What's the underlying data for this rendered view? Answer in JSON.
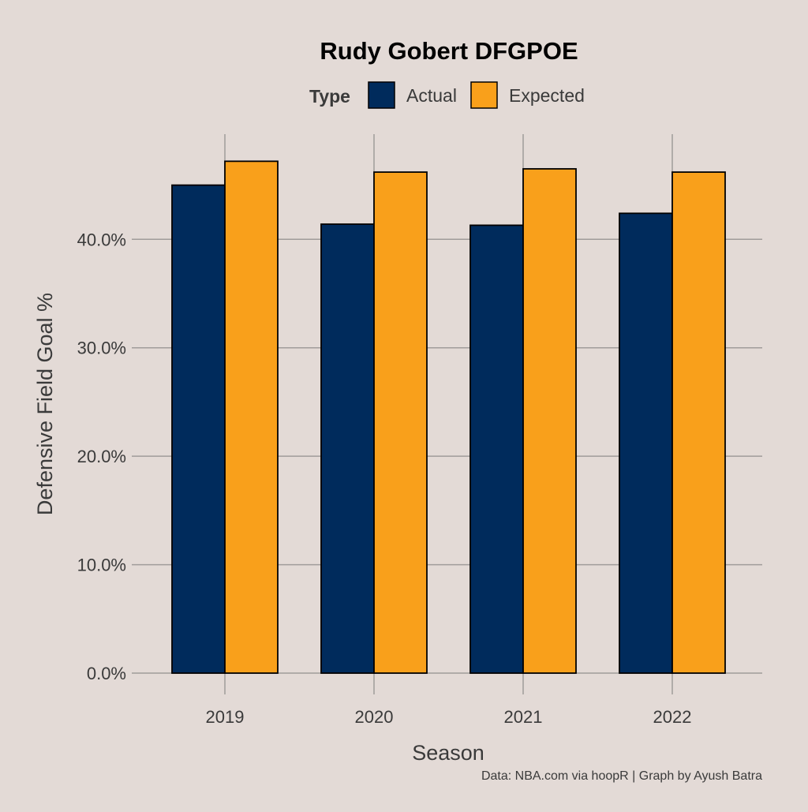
{
  "chart_data": {
    "type": "bar",
    "title": "Rudy Gobert DFGPOE",
    "xlabel": "Season",
    "ylabel": "Defensive Field Goal %",
    "caption": "Data: NBA.com via hoopR | Graph by Ayush Batra",
    "legend": {
      "title": "Type",
      "placement": "top"
    },
    "categories": [
      "2019",
      "2020",
      "2021",
      "2022"
    ],
    "series": [
      {
        "name": "Actual",
        "color": "#002b5c",
        "values": [
          45.0,
          41.4,
          41.3,
          42.4
        ]
      },
      {
        "name": "Expected",
        "color": "#f9a01b",
        "values": [
          47.2,
          46.2,
          46.5,
          46.2
        ]
      }
    ],
    "yticks": [
      0,
      10,
      20,
      30,
      40
    ],
    "ytick_labels": [
      "0.0%",
      "10.0%",
      "20.0%",
      "30.0%",
      "40.0%"
    ],
    "ylim": [
      0,
      49.7
    ],
    "grid": true
  }
}
